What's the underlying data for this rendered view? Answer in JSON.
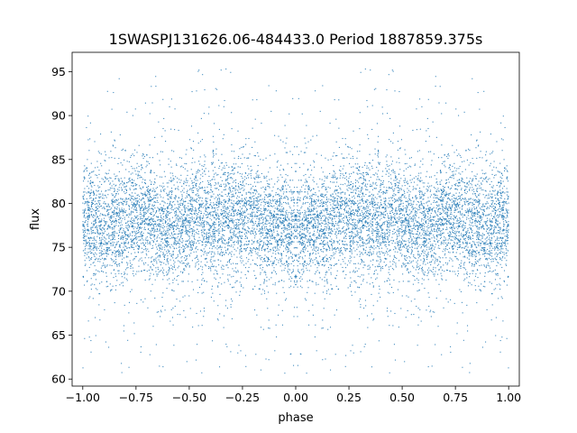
{
  "chart_data": {
    "type": "scatter",
    "title": "1SWASPJ131626.06-484433.0 Period 1887859.375s",
    "xlabel": "phase",
    "ylabel": "flux",
    "xlim": [
      -1.05,
      1.05
    ],
    "ylim": [
      59.2,
      97.2
    ],
    "xticks": [
      -1.0,
      -0.75,
      -0.5,
      -0.25,
      0.0,
      0.25,
      0.5,
      0.75,
      1.0
    ],
    "xtick_labels": [
      "−1.00",
      "−0.75",
      "−0.50",
      "−0.25",
      "0.00",
      "0.25",
      "0.50",
      "0.75",
      "1.00"
    ],
    "yticks": [
      60,
      65,
      70,
      75,
      80,
      85,
      90,
      95
    ],
    "ytick_labels": [
      "60",
      "65",
      "70",
      "75",
      "80",
      "85",
      "90",
      "95"
    ],
    "grid": false,
    "legend": "none",
    "marker_color": "#1f77b4",
    "series": [
      {
        "phase_range": [
          -1.0,
          1.0
        ],
        "symmetric_about_phase": 0.0,
        "flux_center": 77.5,
        "flux_core_range": [
          71,
          84
        ],
        "flux_full_range": [
          60.5,
          95.8
        ],
        "phase_profile": [
          {
            "phase": 0.0,
            "flux_center": 77.0,
            "flux_spread": 2.6
          },
          {
            "phase": 0.15,
            "flux_center": 78.0,
            "flux_spread": 3.0
          },
          {
            "phase": 0.3,
            "flux_center": 78.5,
            "flux_spread": 3.2
          },
          {
            "phase": 0.45,
            "flux_center": 78.0,
            "flux_spread": 3.0
          },
          {
            "phase": 0.6,
            "flux_center": 77.5,
            "flux_spread": 2.8
          },
          {
            "phase": 0.8,
            "flux_center": 78.0,
            "flux_spread": 2.9
          },
          {
            "phase": 1.0,
            "flux_center": 77.5,
            "flux_spread": 2.9
          }
        ]
      }
    ]
  }
}
